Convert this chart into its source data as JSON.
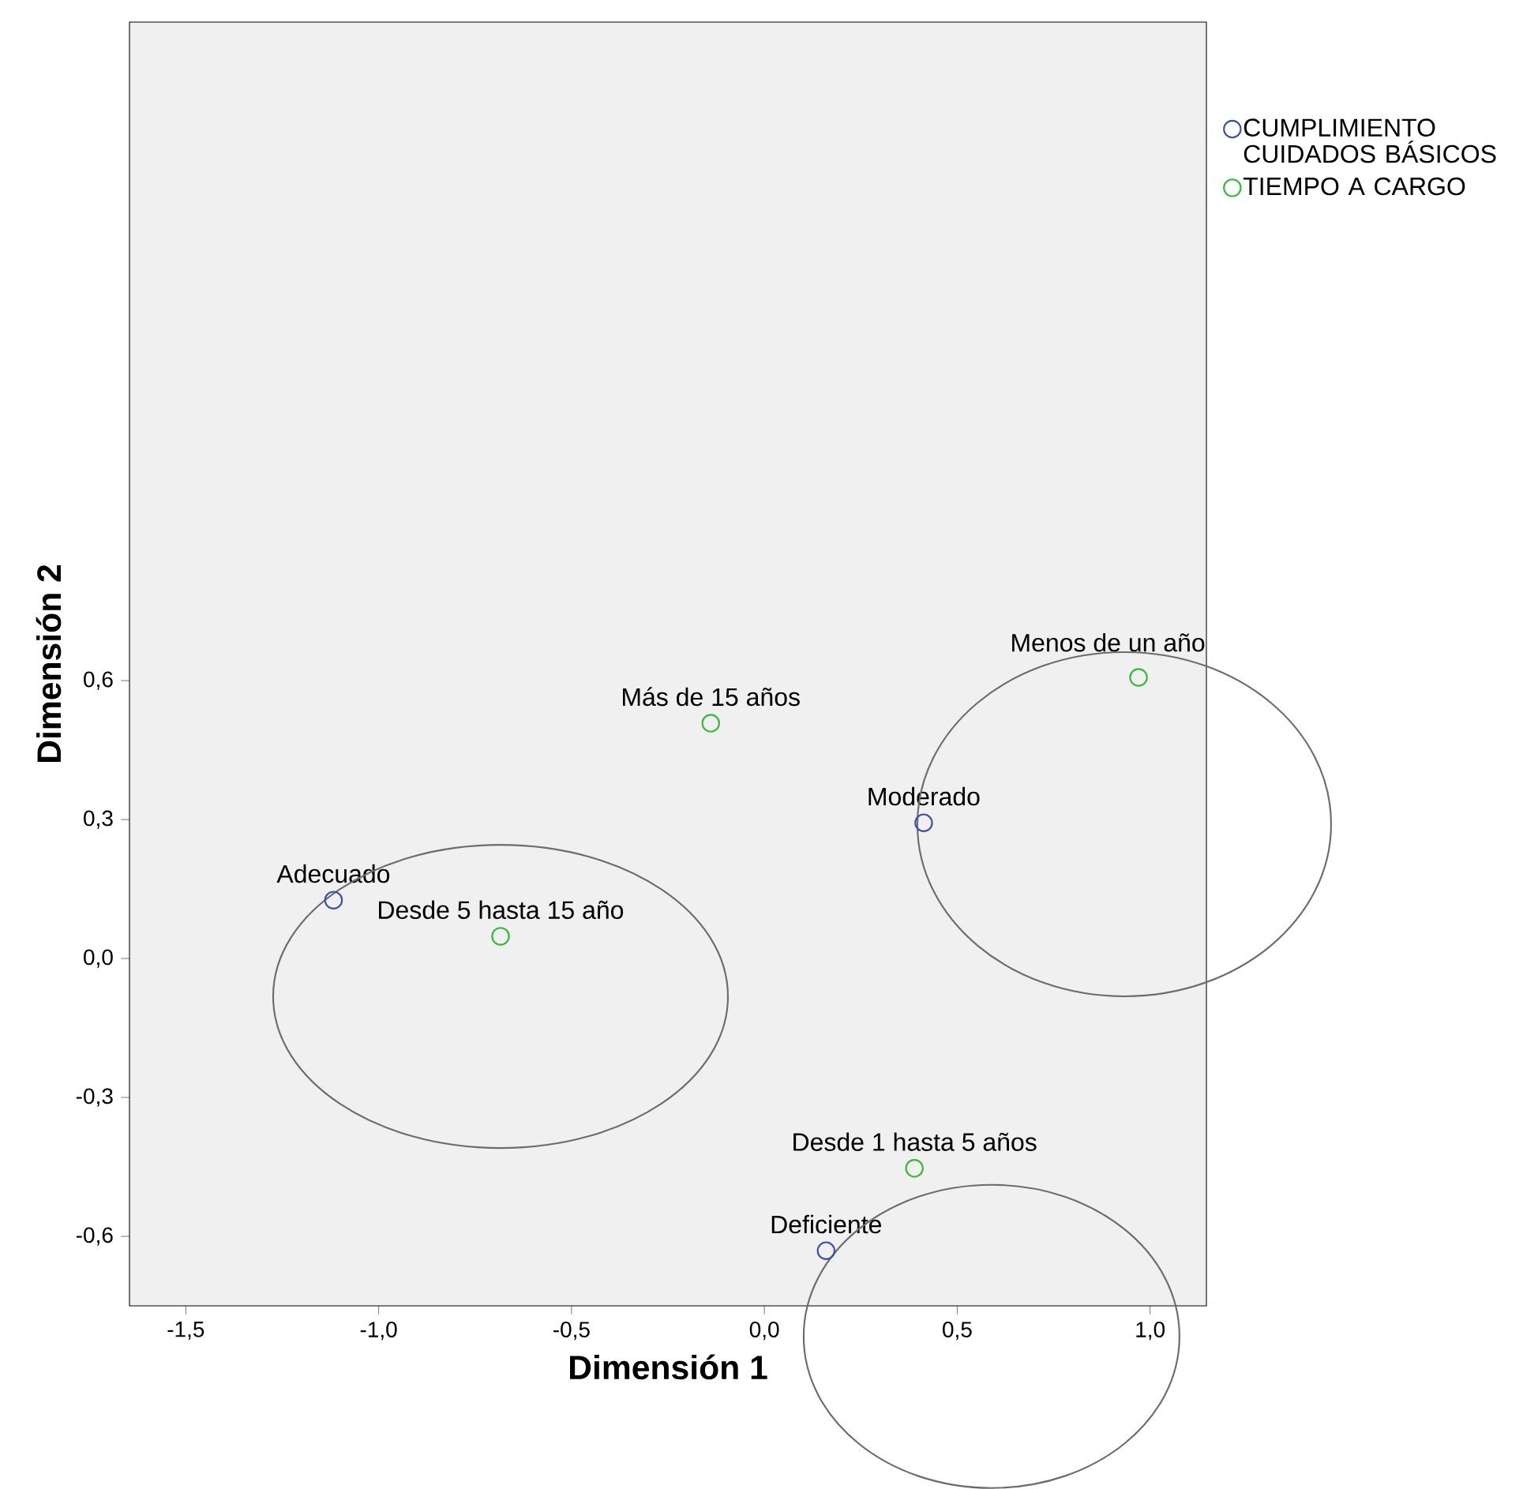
{
  "chart_data": {
    "type": "scatter",
    "xlabel": "Dimensión 1",
    "ylabel": "Dimensión 2",
    "xlim": [
      -1.646,
      1.146
    ],
    "ylim": [
      -0.75,
      2.022
    ],
    "xticks": [
      {
        "value": -1.5,
        "label": "-1,5"
      },
      {
        "value": -1.0,
        "label": "-1,0"
      },
      {
        "value": -0.5,
        "label": "-0,5"
      },
      {
        "value": 0.0,
        "label": "0,0"
      },
      {
        "value": 0.5,
        "label": "0,5"
      },
      {
        "value": 1.0,
        "label": "1,0"
      }
    ],
    "yticks": [
      {
        "value": -0.6,
        "label": "-0,6"
      },
      {
        "value": -0.3,
        "label": "-0,3"
      },
      {
        "value": 0.0,
        "label": "0,0"
      },
      {
        "value": 0.3,
        "label": "0,3"
      },
      {
        "value": 0.6,
        "label": "0,6"
      }
    ],
    "series": [
      {
        "name": "CUMPLIMIENTO CUIDADOS BÁSICOS",
        "color": "#3b4fae",
        "x": [
          -1.117,
          0.413,
          0.16
        ],
        "values": [
          0.126,
          0.293,
          -0.631
        ]
      },
      {
        "name": "TIEMPO A CARGO",
        "color": "#33bb33",
        "x": [
          0.97,
          0.389,
          -0.684,
          -0.139
        ],
        "values": [
          0.607,
          -0.453,
          0.048,
          0.508
        ]
      }
    ],
    "annotations": [
      {
        "text": "Adecuado",
        "x": -1.117,
        "y": 0.126
      },
      {
        "text": "Moderado",
        "x": 0.413,
        "y": 0.293
      },
      {
        "text": "Deficiente",
        "x": 0.16,
        "y": -0.631
      },
      {
        "text": "Menos de un año",
        "x": 0.97,
        "y": 0.607
      },
      {
        "text": "Desde 1 hasta 5 años",
        "x": 0.389,
        "y": -0.453
      },
      {
        "text": "Desde 5 hasta 15 año",
        "x": -0.684,
        "y": 0.048
      },
      {
        "text": "Más de 15 años",
        "x": -0.139,
        "y": 0.508
      }
    ],
    "marker": "circle",
    "legend": "right"
  }
}
